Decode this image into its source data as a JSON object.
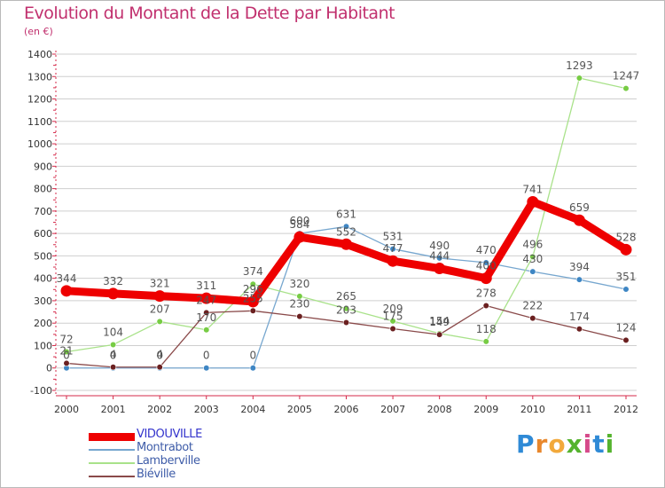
{
  "header": {
    "title": "Evolution du Montant de la Dette par Habitant",
    "unit": "(en €)"
  },
  "brand": {
    "name": "Proxiti",
    "letters": [
      "P",
      "r",
      "o",
      "x",
      "i",
      "t",
      "i"
    ],
    "colors": [
      "#2f8ad6",
      "#e8872c",
      "#f2a93b",
      "#55b32e",
      "#d64a8a",
      "#2f8ad6",
      "#55b32e"
    ]
  },
  "colors": {
    "title": "#c1306e",
    "axis": "#d52a4a",
    "grid": "#cfcfcf",
    "label": "#555555"
  },
  "chart_data": {
    "type": "line",
    "title": "Evolution du Montant de la Dette par Habitant",
    "subtitle": "(en €)",
    "x": [
      "2000",
      "2001",
      "2002",
      "2003",
      "2004",
      "2005",
      "2006",
      "2007",
      "2008",
      "2009",
      "2010",
      "2011",
      "2012"
    ],
    "ylim": [
      -100,
      1400
    ],
    "yticks": [
      -100,
      0,
      100,
      200,
      300,
      400,
      500,
      600,
      700,
      800,
      900,
      1000,
      1100,
      1200,
      1300,
      1400
    ],
    "grid": "horizontal",
    "legend": "bottom-left",
    "series": [
      {
        "name": "VIDOUVILLE",
        "color": "#ee0000",
        "marker": "#ee0000",
        "emphasis": true,
        "values": [
          344,
          332,
          321,
          311,
          296,
          584,
          552,
          477,
          444,
          400,
          741,
          659,
          528
        ],
        "labels": [
          "344",
          "332",
          "321",
          "311",
          "296",
          "584",
          "552",
          "477",
          "444",
          "400",
          "741",
          "659",
          "528"
        ]
      },
      {
        "name": "Montrabot",
        "color": "#77a7cf",
        "marker": "#3e86c4",
        "emphasis": false,
        "values": [
          0,
          0,
          0,
          0,
          0,
          600,
          631,
          531,
          490,
          470,
          430,
          394,
          351
        ],
        "labels": [
          "0",
          "0",
          "0",
          "0",
          "0",
          "600",
          "631",
          "531",
          "490",
          "470",
          "430",
          "394",
          "351"
        ]
      },
      {
        "name": "Lamberville",
        "color": "#a9e28a",
        "marker": "#77cc44",
        "emphasis": false,
        "values": [
          72,
          104,
          207,
          170,
          374,
          320,
          265,
          209,
          154,
          118,
          496,
          1293,
          1247
        ],
        "labels": [
          "72",
          "104",
          "207",
          "170",
          "374",
          "320",
          "265",
          "209",
          "154",
          "118",
          "496",
          "1293",
          "1247"
        ]
      },
      {
        "name": "Biéville",
        "color": "#8a4a4a",
        "marker": "#6b2020",
        "emphasis": false,
        "values": [
          21,
          4,
          4,
          247,
          255,
          230,
          203,
          175,
          149,
          278,
          222,
          174,
          124
        ],
        "labels": [
          "21",
          "4",
          "4",
          "247",
          "255",
          "230",
          "203",
          "175",
          "149",
          "278",
          "222",
          "174",
          "124"
        ]
      }
    ]
  }
}
